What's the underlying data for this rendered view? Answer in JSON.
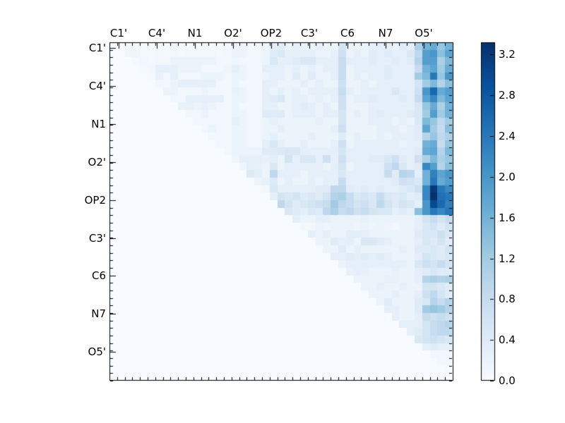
{
  "chart_data": {
    "type": "heatmap",
    "title": "",
    "xlabel": "",
    "ylabel": "",
    "x_tick_labels": [
      "C1'",
      "C4'",
      "N1",
      "O2'",
      "OP2",
      "C3'",
      "C6",
      "N7",
      "O5'"
    ],
    "y_tick_labels": [
      "C1'",
      "C4'",
      "N1",
      "O2'",
      "OP2",
      "C3'",
      "C6",
      "N7",
      "O5'"
    ],
    "n": 45,
    "group_size": 5,
    "vmin": 0.0,
    "vmax": 3.32,
    "colormap": "Blues",
    "colormap_anchors": [
      "#f7fbff",
      "#deebf7",
      "#c6dbef",
      "#9ecae1",
      "#6baed6",
      "#4292c6",
      "#2171b5",
      "#08519c",
      "#08306b"
    ],
    "colorbar_ticks": [
      "0.0",
      "0.4",
      "0.8",
      "1.2",
      "1.6",
      "2.0",
      "2.4",
      "2.8",
      "3.2"
    ],
    "colorbar_tick_values": [
      0.0,
      0.4,
      0.8,
      1.2,
      1.6,
      2.0,
      2.4,
      2.8,
      3.2
    ],
    "grid": false,
    "legend": "colorbar-right",
    "row_encoding": "s = first nonzero column index, v = values for columns s..44, all columns before s are 0",
    "matrix_rows": [
      {
        "s": 2,
        "v": [
          0.1,
          0.05,
          0.05,
          0.05,
          0.05,
          0.05,
          0.15,
          0.05,
          0.05,
          0.05,
          0.1,
          0.05,
          0.05,
          0.1,
          0.15,
          0.15,
          0.1,
          0.1,
          0.15,
          0.3,
          0.4,
          0.2,
          0.3,
          0.2,
          0.2,
          0.3,
          0.2,
          0.2,
          0.6,
          0.2,
          0.2,
          0.2,
          0.3,
          0.3,
          0.3,
          0.2,
          0.4,
          0.3,
          1.1,
          1.6,
          1.7,
          1.3,
          1.6
        ]
      },
      {
        "s": 2,
        "v": [
          0.15,
          0.15,
          0.05,
          0.05,
          0.1,
          0.05,
          0.1,
          0.05,
          0.1,
          0.1,
          0.1,
          0.1,
          0.05,
          0.1,
          0.2,
          0.2,
          0.1,
          0.1,
          0.2,
          0.4,
          0.5,
          0.3,
          0.3,
          0.3,
          0.3,
          0.2,
          0.2,
          0.3,
          0.7,
          0.2,
          0.3,
          0.2,
          0.4,
          0.3,
          0.4,
          0.3,
          0.3,
          0.5,
          0.9,
          1.9,
          2.0,
          1.4,
          1.8
        ]
      },
      {
        "s": 3,
        "v": [
          0.05,
          0.1,
          0.05,
          0.1,
          0.1,
          0.2,
          0.2,
          0.2,
          0.2,
          0.2,
          0.2,
          0.1,
          0.1,
          0.15,
          0.1,
          0.1,
          0.1,
          0.2,
          0.5,
          0.3,
          0.3,
          0.4,
          0.5,
          0.5,
          0.3,
          0.3,
          0.3,
          0.8,
          0.3,
          0.3,
          0.3,
          0.4,
          0.3,
          0.3,
          0.4,
          0.3,
          0.4,
          1.0,
          1.9,
          1.9,
          1.1,
          1.5
        ]
      },
      {
        "s": 4,
        "v": [
          0.05,
          0.1,
          0.3,
          0.3,
          0.3,
          0.2,
          0.2,
          0.2,
          0.1,
          0.1,
          0.1,
          0.15,
          0.3,
          0.2,
          0.1,
          0.1,
          0.3,
          0.3,
          0.3,
          0.2,
          0.3,
          0.2,
          0.3,
          0.2,
          0.3,
          0.3,
          0.8,
          0.2,
          0.3,
          0.3,
          0.3,
          0.3,
          0.4,
          0.3,
          0.3,
          0.3,
          0.8,
          1.6,
          1.8,
          1.2,
          1.7
        ]
      },
      {
        "s": 5,
        "v": [
          0.05,
          0.25,
          0.1,
          0.3,
          0.1,
          0.1,
          0.1,
          0.2,
          0.2,
          0.2,
          0.1,
          0.2,
          0.2,
          0.1,
          0.1,
          0.2,
          0.3,
          0.3,
          0.2,
          0.4,
          0.2,
          0.4,
          0.2,
          0.2,
          0.3,
          0.8,
          0.2,
          0.3,
          0.2,
          0.3,
          0.3,
          0.4,
          0.3,
          0.3,
          0.3,
          1.2,
          1.5,
          2.4,
          1.3,
          2.0
        ]
      },
      {
        "s": 6,
        "v": [
          0.1,
          0.1,
          0.2,
          0.3,
          0.3,
          0.3,
          0.3,
          0.3,
          0.1,
          0.1,
          0.2,
          0.1,
          0.1,
          0.1,
          0.3,
          0.3,
          0.2,
          0.2,
          0.2,
          0.3,
          0.2,
          0.3,
          0.2,
          0.2,
          0.7,
          0.2,
          0.2,
          0.3,
          0.2,
          0.3,
          0.3,
          0.3,
          0.3,
          0.3,
          0.6,
          1.2,
          1.5,
          1.0,
          1.4
        ]
      },
      {
        "s": 7,
        "v": [
          0.2,
          0.2,
          0.1,
          0.1,
          0.1,
          0.2,
          0.1,
          0.1,
          0.1,
          0.25,
          0.2,
          0.1,
          0.1,
          0.3,
          0.2,
          0.3,
          0.2,
          0.3,
          0.2,
          0.3,
          0.3,
          0.3,
          0.3,
          0.8,
          0.3,
          0.2,
          0.3,
          0.3,
          0.3,
          0.3,
          0.5,
          0.3,
          0.3,
          0.7,
          2.0,
          2.6,
          1.7,
          1.9
        ]
      },
      {
        "s": 8,
        "v": [
          0.1,
          0.1,
          0.3,
          0.3,
          0.3,
          0.3,
          0.3,
          0.1,
          0.2,
          0.2,
          0.1,
          0.1,
          0.3,
          0.4,
          0.5,
          0.2,
          0.3,
          0.3,
          0.2,
          0.3,
          0.2,
          0.3,
          0.7,
          0.2,
          0.3,
          0.3,
          0.4,
          0.3,
          0.3,
          0.3,
          0.4,
          0.3,
          0.8,
          1.8,
          2.2,
          1.5,
          1.8
        ]
      },
      {
        "s": 9,
        "v": [
          0.25,
          0.25,
          0.2,
          0.25,
          0.2,
          0.1,
          0.1,
          0.2,
          0.1,
          0.1,
          0.1,
          0.3,
          0.3,
          0.2,
          0.2,
          0.3,
          0.4,
          0.3,
          0.2,
          0.3,
          0.2,
          0.7,
          0.2,
          0.2,
          0.2,
          0.3,
          0.3,
          0.3,
          0.3,
          0.3,
          0.3,
          0.5,
          1.3,
          1.7,
          1.1,
          1.6
        ]
      },
      {
        "s": 10,
        "v": [
          0.1,
          0.1,
          0.2,
          0.1,
          0.1,
          0.1,
          0.2,
          0.2,
          0.1,
          0.1,
          0.4,
          0.4,
          0.4,
          0.2,
          0.3,
          0.3,
          0.3,
          0.2,
          0.3,
          0.3,
          0.6,
          0.2,
          0.3,
          0.2,
          0.3,
          0.4,
          0.3,
          0.3,
          0.3,
          0.4,
          0.5,
          1.2,
          1.9,
          1.2,
          1.6
        ]
      },
      {
        "s": 11,
        "v": [
          0.1,
          0.1,
          0.1,
          0.1,
          0.1,
          0.3,
          0.2,
          0.1,
          0.1,
          0.2,
          0.3,
          0.2,
          0.2,
          0.2,
          0.2,
          0.2,
          0.3,
          0.2,
          0.2,
          0.6,
          0.2,
          0.2,
          0.2,
          0.3,
          0.3,
          0.3,
          0.2,
          0.3,
          0.2,
          0.5,
          1.5,
          1.3,
          0.9,
          1.2
        ]
      },
      {
        "s": 12,
        "v": [
          0.1,
          0.2,
          0.1,
          0.1,
          0.2,
          0.2,
          0.1,
          0.1,
          0.2,
          0.2,
          0.3,
          0.2,
          0.2,
          0.2,
          0.2,
          0.2,
          0.2,
          0.3,
          0.7,
          0.2,
          0.2,
          0.2,
          0.2,
          0.3,
          0.3,
          0.3,
          0.2,
          0.3,
          0.4,
          1.8,
          1.2,
          0.8,
          1.4
        ]
      },
      {
        "s": 13,
        "v": [
          0.1,
          0.1,
          0.1,
          0.2,
          0.2,
          0.1,
          0.1,
          0.2,
          0.3,
          0.2,
          0.2,
          0.2,
          0.2,
          0.3,
          0.2,
          0.2,
          0.2,
          0.4,
          0.2,
          0.3,
          0.2,
          0.2,
          0.3,
          0.2,
          0.3,
          0.3,
          0.3,
          0.4,
          1.0,
          1.3,
          0.9,
          1.1
        ]
      },
      {
        "s": 14,
        "v": [
          0.1,
          0.1,
          0.2,
          0.2,
          0.1,
          0.1,
          0.3,
          0.5,
          0.3,
          0.2,
          0.2,
          0.3,
          0.2,
          0.2,
          0.2,
          0.3,
          0.7,
          0.2,
          0.3,
          0.3,
          0.3,
          0.3,
          0.3,
          0.3,
          0.2,
          0.3,
          0.3,
          1.6,
          1.7,
          0.8,
          1.3
        ]
      },
      {
        "s": 15,
        "v": [
          0.1,
          0.2,
          0.2,
          0.2,
          0.2,
          0.4,
          0.4,
          0.45,
          0.5,
          0.5,
          0.3,
          0.3,
          0.3,
          0.3,
          0.3,
          0.6,
          0.3,
          0.3,
          0.3,
          0.3,
          0.3,
          0.3,
          0.3,
          0.3,
          0.3,
          0.4,
          1.7,
          1.8,
          1.0,
          1.5
        ]
      },
      {
        "s": 16,
        "v": [
          0.15,
          0.3,
          0.3,
          0.3,
          0.25,
          0.35,
          0.2,
          0.6,
          0.3,
          0.5,
          0.5,
          0.3,
          0.7,
          0.3,
          0.7,
          0.3,
          0.3,
          0.3,
          0.4,
          0.4,
          0.5,
          0.7,
          0.4,
          0.3,
          0.7,
          1.1,
          1.5,
          1.1,
          1.3
        ]
      },
      {
        "s": 17,
        "v": [
          0.15,
          0.3,
          0.25,
          0.2,
          0.5,
          0.2,
          0.3,
          0.3,
          0.3,
          0.3,
          0.3,
          0.2,
          0.3,
          0.6,
          0.2,
          0.3,
          0.3,
          0.3,
          0.3,
          0.7,
          0.9,
          0.5,
          0.3,
          0.4,
          2.2,
          1.9,
          1.0,
          1.4
        ]
      },
      {
        "s": 18,
        "v": [
          0.45,
          0.35,
          0.2,
          0.9,
          0.3,
          0.3,
          0.3,
          0.2,
          0.3,
          0.3,
          0.3,
          0.3,
          0.5,
          0.3,
          0.3,
          0.3,
          0.3,
          0.3,
          0.8,
          0.4,
          1.0,
          0.9,
          0.3,
          1.6,
          2.3,
          1.8,
          2.0
        ]
      },
      {
        "s": 19,
        "v": [
          0.2,
          0.25,
          0.45,
          0.2,
          0.3,
          0.2,
          0.2,
          0.3,
          0.2,
          0.3,
          0.3,
          0.8,
          0.3,
          0.3,
          0.3,
          0.3,
          0.3,
          0.3,
          0.4,
          0.7,
          0.6,
          0.5,
          1.6,
          2.4,
          1.7,
          1.9
        ]
      },
      {
        "s": 20,
        "v": [
          0.1,
          0.5,
          0.3,
          0.3,
          0.3,
          0.3,
          0.3,
          0.4,
          0.4,
          0.9,
          0.9,
          0.4,
          0.3,
          0.4,
          0.3,
          0.4,
          0.3,
          0.3,
          0.4,
          0.5,
          0.7,
          2.2,
          3.2,
          2.4,
          2.2
        ]
      },
      {
        "s": 21,
        "v": [
          0.3,
          0.6,
          0.5,
          0.6,
          0.4,
          0.5,
          0.4,
          0.6,
          1.0,
          1.1,
          0.8,
          0.5,
          0.6,
          0.5,
          0.8,
          0.5,
          0.4,
          0.5,
          0.3,
          0.4,
          2.2,
          3.3,
          2.5,
          2.4
        ]
      },
      {
        "s": 22,
        "v": [
          0.9,
          0.6,
          0.4,
          0.5,
          0.6,
          0.7,
          0.8,
          1.2,
          0.9,
          0.8,
          0.6,
          0.7,
          0.5,
          0.9,
          0.6,
          0.4,
          0.6,
          0.5,
          0.3,
          2.0,
          3.0,
          2.6,
          2.3
        ]
      },
      {
        "s": 23,
        "v": [
          0.5,
          0.4,
          0.3,
          0.5,
          0.4,
          0.9,
          1.1,
          0.8,
          0.9,
          0.7,
          0.8,
          0.6,
          0.5,
          0.5,
          0.3,
          0.4,
          0.3,
          1.4,
          2.0,
          2.4,
          2.2,
          2.4
        ]
      },
      {
        "s": 24,
        "v": [
          0.3,
          0.2,
          0.2,
          0.3,
          0.3,
          0.2,
          0.2,
          0.2,
          0.2,
          0.25,
          0.2,
          0.2,
          0.2,
          0.2,
          0.2,
          0.2,
          0.3,
          0.6,
          0.8,
          0.6,
          0.8
        ]
      },
      {
        "s": 25,
        "v": [
          0.1,
          0.1,
          0.2,
          0.15,
          0.2,
          0.2,
          0.2,
          0.15,
          0.2,
          0.15,
          0.2,
          0.15,
          0.1,
          0.2,
          0.2,
          0.3,
          0.5,
          0.6,
          0.4,
          0.6
        ]
      },
      {
        "s": 26,
        "v": [
          0.3,
          0.2,
          0.3,
          0.2,
          0.2,
          0.35,
          0.35,
          0.3,
          0.2,
          0.2,
          0.2,
          0.2,
          0.2,
          0.2,
          0.4,
          0.5,
          0.5,
          0.7,
          0.5
        ]
      },
      {
        "s": 27,
        "v": [
          0.2,
          0.2,
          0.4,
          0.3,
          0.3,
          0.2,
          0.5,
          0.5,
          0.4,
          0.3,
          0.2,
          0.2,
          0.2,
          0.3,
          0.5,
          0.4,
          0.6,
          0.4
        ]
      },
      {
        "s": 28,
        "v": [
          0.2,
          0.2,
          0.4,
          0.2,
          0.3,
          0.2,
          0.2,
          0.2,
          0.2,
          0.2,
          0.3,
          0.2,
          0.4,
          0.4,
          0.5,
          0.4,
          0.6
        ]
      },
      {
        "s": 29,
        "v": [
          0.3,
          0.3,
          0.4,
          0.3,
          0.4,
          0.3,
          0.4,
          0.3,
          0.2,
          0.2,
          0.2,
          0.3,
          0.6,
          0.5,
          0.4,
          0.5
        ]
      },
      {
        "s": 30,
        "v": [
          0.2,
          0.3,
          0.3,
          0.3,
          0.3,
          0.3,
          0.3,
          0.3,
          0.3,
          0.2,
          0.5,
          0.7,
          0.6,
          0.8,
          0.6
        ]
      },
      {
        "s": 31,
        "v": [
          0.25,
          0.3,
          0.25,
          0.2,
          0.2,
          0.2,
          0.25,
          0.2,
          0.2,
          0.3,
          0.4,
          0.5,
          0.4,
          0.4
        ]
      },
      {
        "s": 32,
        "v": [
          0.2,
          0.2,
          0.2,
          0.2,
          0.25,
          0.25,
          0.2,
          0.2,
          0.3,
          1.0,
          1.1,
          1.0,
          1.1
        ]
      },
      {
        "s": 33,
        "v": [
          0.2,
          0.2,
          0.3,
          0.2,
          0.2,
          0.3,
          0.2,
          0.2,
          0.6,
          0.6,
          0.5,
          0.4
        ]
      },
      {
        "s": 34,
        "v": [
          0.2,
          0.2,
          0.2,
          0.3,
          0.2,
          0.2,
          0.3,
          0.7,
          0.9,
          0.6,
          0.4
        ]
      },
      {
        "s": 35,
        "v": [
          0.2,
          0.4,
          0.2,
          0.2,
          0.2,
          0.4,
          0.5,
          1.0,
          0.8,
          1.0
        ]
      },
      {
        "s": 36,
        "v": [
          0.3,
          0.3,
          0.2,
          0.2,
          0.4,
          1.2,
          1.3,
          1.2,
          1.0
        ]
      },
      {
        "s": 37,
        "v": [
          0.3,
          0.2,
          0.2,
          0.3,
          0.8,
          0.7,
          0.8,
          0.7
        ]
      },
      {
        "s": 38,
        "v": [
          0.3,
          0.3,
          0.3,
          0.6,
          0.8,
          0.9,
          1.0
        ]
      },
      {
        "s": 39,
        "v": [
          0.3,
          0.4,
          0.6,
          0.8,
          0.9,
          0.9
        ]
      },
      {
        "s": 40,
        "v": [
          0.5,
          0.6,
          0.7,
          0.6,
          0.5
        ]
      },
      {
        "s": 41,
        "v": [
          0.3,
          0.4,
          0.3,
          0.3
        ]
      },
      {
        "s": 42,
        "v": [
          0.1,
          0.1,
          0.1
        ]
      },
      {
        "s": 43,
        "v": [
          0.1,
          0.1
        ]
      },
      {
        "s": 44,
        "v": [
          0.05
        ]
      },
      {
        "s": 44,
        "v": [
          0.0
        ]
      }
    ]
  }
}
